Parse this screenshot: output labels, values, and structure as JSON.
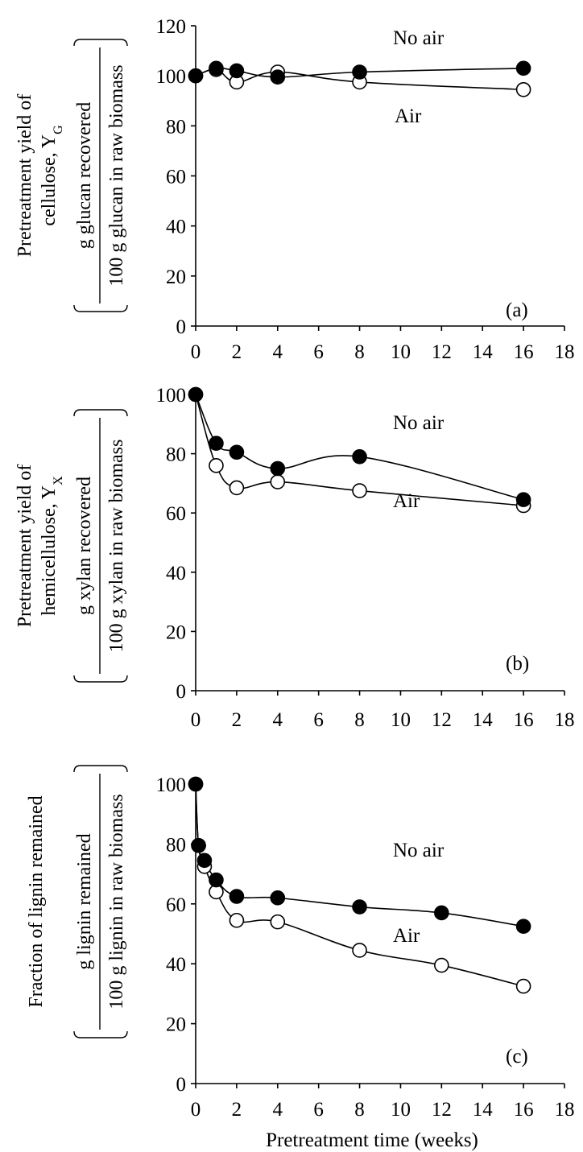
{
  "chart_data": [
    {
      "type": "line",
      "xlim": [
        0,
        18
      ],
      "ylim": [
        0,
        120
      ],
      "x_ticks": [
        "0",
        "2",
        "4",
        "6",
        "8",
        "10",
        "12",
        "14",
        "16",
        "18"
      ],
      "y_ticks": [
        "0",
        "20",
        "40",
        "60",
        "80",
        "100",
        "120"
      ],
      "ylabel_lines": [
        "Pretreatment yield of",
        "cellulose, Y",
        "G"
      ],
      "ylabel_fraction": {
        "numerator": "g glucan recovered",
        "denominator": "100 g glucan in raw biomass"
      },
      "panel_label": "(a)",
      "series": [
        {
          "name": "No air",
          "marker": "filled",
          "x": [
            0,
            1,
            2,
            4,
            8,
            16
          ],
          "y": [
            100,
            103,
            102,
            99.5,
            101.5,
            103
          ]
        },
        {
          "name": "Air",
          "marker": "open",
          "x": [
            0,
            1,
            2,
            4,
            8,
            16
          ],
          "y": [
            100,
            102.5,
            97.5,
            101.5,
            97.5,
            94.5
          ]
        }
      ]
    },
    {
      "type": "line",
      "xlim": [
        0,
        18
      ],
      "ylim": [
        0,
        100
      ],
      "x_ticks": [
        "0",
        "2",
        "4",
        "6",
        "8",
        "10",
        "12",
        "14",
        "16",
        "18"
      ],
      "y_ticks": [
        "0",
        "20",
        "40",
        "60",
        "80",
        "100"
      ],
      "ylabel_lines": [
        "Pretreatment yield of",
        "hemicellulose, Y",
        "X"
      ],
      "ylabel_fraction": {
        "numerator": "g xylan recovered",
        "denominator": "100 g xylan in raw biomass"
      },
      "panel_label": "(b)",
      "series": [
        {
          "name": "No air",
          "marker": "filled",
          "x": [
            0,
            1,
            2,
            4,
            8,
            16
          ],
          "y": [
            100,
            83.5,
            80.5,
            75,
            79,
            64.5
          ]
        },
        {
          "name": "Air",
          "marker": "open",
          "x": [
            0,
            1,
            2,
            4,
            8,
            16
          ],
          "y": [
            100,
            76,
            68.5,
            70.5,
            67.5,
            62.5
          ]
        }
      ]
    },
    {
      "type": "line",
      "xlim": [
        0,
        18
      ],
      "ylim": [
        0,
        100
      ],
      "x_ticks": [
        "0",
        "2",
        "4",
        "6",
        "8",
        "10",
        "12",
        "14",
        "16",
        "18"
      ],
      "y_ticks": [
        "0",
        "20",
        "40",
        "60",
        "80",
        "100"
      ],
      "xlabel": "Pretreatment time (weeks)",
      "ylabel_lines": [
        "Fraction of lignin remained"
      ],
      "ylabel_fraction": {
        "numerator": "g lignin remained",
        "denominator": "100 g lignin in raw biomass"
      },
      "panel_label": "(c)",
      "series": [
        {
          "name": "No air",
          "marker": "filled",
          "x": [
            0,
            0.14,
            0.43,
            1,
            2,
            4,
            8,
            12,
            16
          ],
          "y": [
            100,
            79.5,
            74.5,
            68,
            62.5,
            62,
            59,
            57,
            52.5
          ]
        },
        {
          "name": "Air",
          "marker": "open",
          "x": [
            0,
            0.14,
            0.43,
            1,
            2,
            4,
            8,
            12,
            16
          ],
          "y": [
            100,
            79.5,
            72.5,
            64,
            54.5,
            54,
            44.5,
            39.5,
            32.5
          ]
        }
      ]
    }
  ]
}
